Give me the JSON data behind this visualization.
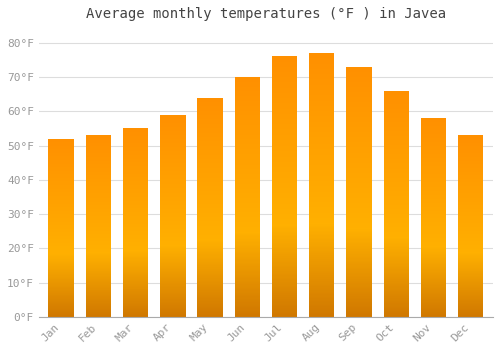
{
  "title": "Average monthly temperatures (°F ) in Javea",
  "months": [
    "Jan",
    "Feb",
    "Mar",
    "Apr",
    "May",
    "Jun",
    "Jul",
    "Aug",
    "Sep",
    "Oct",
    "Nov",
    "Dec"
  ],
  "values": [
    52,
    53,
    55,
    59,
    64,
    70,
    76,
    77,
    73,
    66,
    58,
    53
  ],
  "bar_color_bottom": "#E8900A",
  "bar_color_mid": "#FFB800",
  "bar_color_top": "#FFA500",
  "background_color": "#ffffff",
  "grid_color": "#dddddd",
  "ylim": [
    0,
    84
  ],
  "yticks": [
    0,
    10,
    20,
    30,
    40,
    50,
    60,
    70,
    80
  ],
  "ytick_labels": [
    "0°F",
    "10°F",
    "20°F",
    "30°F",
    "40°F",
    "50°F",
    "60°F",
    "70°F",
    "80°F"
  ],
  "tick_color": "#999999",
  "font_color": "#999999",
  "title_color": "#444444",
  "title_fontsize": 10,
  "tick_fontsize": 8
}
